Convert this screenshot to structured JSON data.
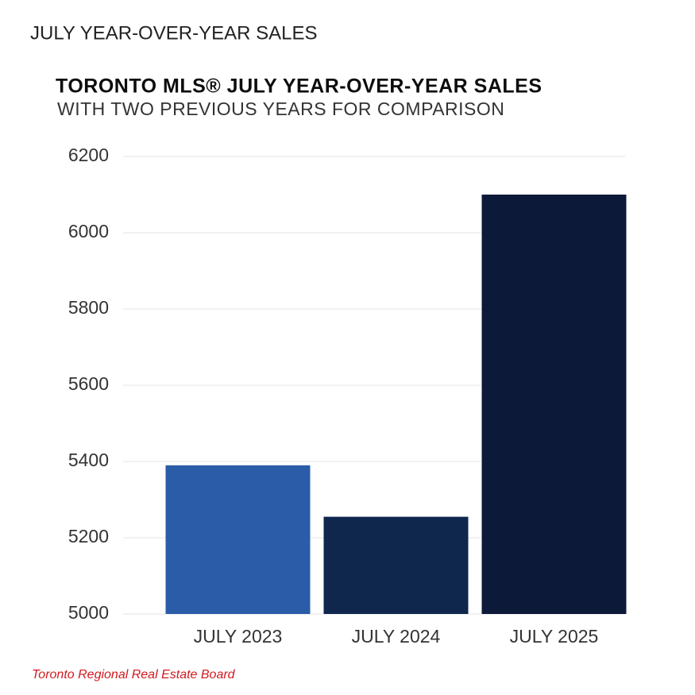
{
  "page_title": "JULY YEAR-OVER-YEAR SALES",
  "source": "Toronto Regional Real Estate Board",
  "chart_data": {
    "type": "bar",
    "title": "TORONTO MLS® JULY YEAR-OVER-YEAR SALES",
    "subtitle": "WITH TWO PREVIOUS YEARS FOR COMPARISON",
    "categories": [
      "JULY 2023",
      "JULY 2024",
      "JULY 2025"
    ],
    "values": [
      5390,
      5255,
      6100
    ],
    "colors": [
      "#2b5ca8",
      "#0f264d",
      "#0c1938"
    ],
    "ylim": [
      5000,
      6200
    ],
    "yticks": [
      5000,
      5200,
      5400,
      5600,
      5800,
      6000,
      6200
    ],
    "grid": true
  }
}
